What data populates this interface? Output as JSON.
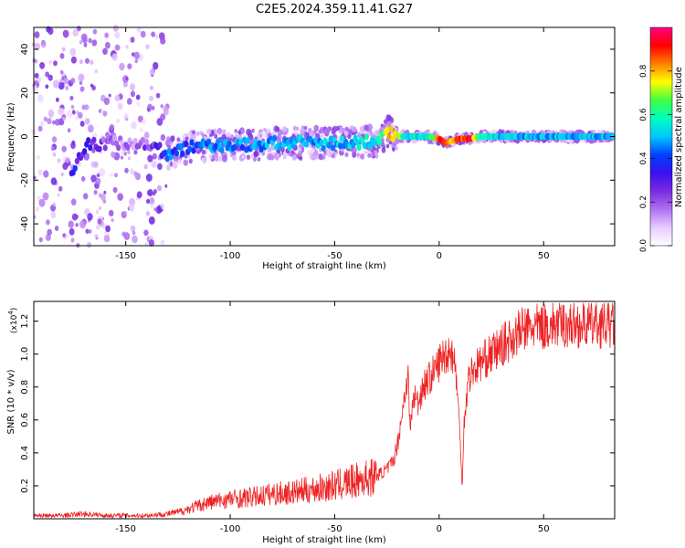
{
  "title": "C2E5.2024.359.11.41.G27",
  "chart_data": [
    {
      "type": "heatmap",
      "description_x": "Height of straight line (km)",
      "xlabel": "Height of straight line (km)",
      "ylabel": "Frequency (Hz)",
      "xlim": [
        -194,
        84
      ],
      "ylim": [
        -50,
        50
      ],
      "x_ticks": [
        -150,
        -100,
        -50,
        0,
        50
      ],
      "x_tick_labels": [
        "-150",
        "-100",
        "-50",
        "0",
        "50"
      ],
      "y_ticks": [
        -40,
        -20,
        0,
        20,
        40
      ],
      "y_tick_labels": [
        "-40",
        "-20",
        "0",
        "20",
        "40"
      ],
      "colorbar": {
        "label": "Normalized spectral amplitude",
        "range": [
          0,
          1
        ],
        "ticks": [
          0.0,
          0.2,
          0.4,
          0.6,
          0.8
        ],
        "tick_labels": [
          "0.0",
          "0.2",
          "0.4",
          "0.6",
          "0.8"
        ],
        "colormap": [
          "#ffffff",
          "#e8ccff",
          "#b070f0",
          "#7a2be0",
          "#3a10f0",
          "#0040ff",
          "#00c8ff",
          "#00ffc0",
          "#40ff40",
          "#ffff00",
          "#ff8000",
          "#ff0000",
          "#ff0080"
        ]
      },
      "ridge": {
        "description": "dominant frequency trace, Hz vs km",
        "x": [
          -175,
          -172,
          -168,
          -160,
          -150,
          -140,
          -130,
          -120,
          -110,
          -100,
          -90,
          -80,
          -70,
          -60,
          -50,
          -40,
          -30,
          -24,
          -20,
          -15,
          -10,
          -5,
          0,
          3,
          6,
          10,
          15,
          20,
          30,
          40,
          50,
          60,
          70,
          80,
          84
        ],
        "y": [
          -16,
          -8,
          -4,
          -3,
          -3,
          -3,
          -8,
          -5,
          -4,
          -4,
          -4,
          -3,
          -3,
          -3,
          -3,
          -3,
          -2,
          2,
          0,
          0,
          0,
          0,
          -1,
          -3,
          -2,
          -1,
          -1,
          0,
          0,
          0,
          0,
          0,
          0,
          0,
          0
        ],
        "amplitude": [
          0.35,
          0.3,
          0.3,
          0.2,
          0.15,
          0.2,
          0.4,
          0.4,
          0.45,
          0.45,
          0.45,
          0.5,
          0.5,
          0.5,
          0.5,
          0.5,
          0.55,
          0.75,
          0.7,
          0.55,
          0.55,
          0.55,
          0.85,
          0.9,
          0.8,
          0.9,
          0.9,
          0.6,
          0.5,
          0.5,
          0.5,
          0.5,
          0.5,
          0.5,
          0.5
        ]
      }
    },
    {
      "type": "line",
      "xlabel": "Height of straight line (km)",
      "ylabel": "SNR (10 * v/v)",
      "scale_label": "(x10",
      "scale_exp": "4",
      "scale_close": ")",
      "xlim": [
        -194,
        84
      ],
      "ylim": [
        0,
        1.32
      ],
      "x_ticks": [
        -150,
        -100,
        -50,
        0,
        50
      ],
      "x_tick_labels": [
        "-150",
        "-100",
        "-50",
        "0",
        "50"
      ],
      "y_ticks": [
        0.2,
        0.4,
        0.6,
        0.8,
        1.0,
        1.2
      ],
      "y_tick_labels": [
        "0.2",
        "0.4",
        "0.6",
        "0.8",
        "1.0",
        "1.2"
      ],
      "series": [
        {
          "color": "#ee2222",
          "x": [
            -194,
            -180,
            -170,
            -160,
            -150,
            -140,
            -130,
            -125,
            -120,
            -115,
            -110,
            -100,
            -90,
            -80,
            -70,
            -60,
            -50,
            -40,
            -30,
            -25,
            -22,
            -20,
            -17,
            -15,
            -14,
            -12,
            -10,
            -8,
            -5,
            -2,
            0,
            3,
            6,
            8,
            10,
            11,
            12,
            14,
            16,
            20,
            25,
            30,
            35,
            40,
            50,
            60,
            70,
            80,
            84
          ],
          "y": [
            0.02,
            0.02,
            0.03,
            0.02,
            0.02,
            0.02,
            0.03,
            0.04,
            0.06,
            0.08,
            0.1,
            0.12,
            0.13,
            0.15,
            0.16,
            0.18,
            0.2,
            0.23,
            0.26,
            0.3,
            0.35,
            0.45,
            0.7,
            0.9,
            0.55,
            0.75,
            0.7,
            0.8,
            0.85,
            0.9,
            0.95,
            1.0,
            1.02,
            0.9,
            0.5,
            0.2,
            0.6,
            0.85,
            0.9,
            0.95,
            1.0,
            1.05,
            1.1,
            1.15,
            1.17,
            1.18,
            1.18,
            1.18,
            1.18
          ]
        }
      ]
    }
  ]
}
